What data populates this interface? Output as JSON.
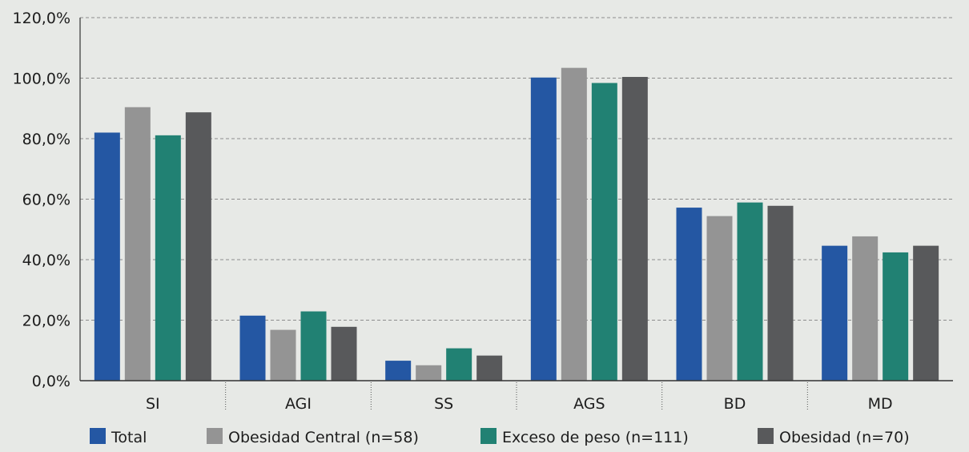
{
  "chart_data": {
    "type": "bar",
    "title": "",
    "xlabel": "",
    "ylabel": "",
    "ylim": [
      0,
      120
    ],
    "yticks": [
      0,
      20,
      40,
      60,
      80,
      100,
      120
    ],
    "ytick_labels": [
      "0,0%",
      "20,0%",
      "40,0%",
      "60,0%",
      "80,0%",
      "100,0%",
      "120,0%"
    ],
    "grid": true,
    "legend_position": "bottom",
    "categories": [
      "SI",
      "AGI",
      "SS",
      "AGS",
      "BD",
      "MD"
    ],
    "series": [
      {
        "name": "Total",
        "color": "#2457a3",
        "values": [
          82.0,
          21.5,
          6.6,
          100.2,
          57.2,
          44.6
        ]
      },
      {
        "name": "Obesidad Central (n=58)",
        "color": "#949494",
        "values": [
          90.4,
          16.8,
          5.1,
          103.4,
          54.4,
          47.7
        ]
      },
      {
        "name": "Exceso de peso (n=111)",
        "color": "#218173",
        "values": [
          81.1,
          22.9,
          10.7,
          98.4,
          58.9,
          42.4
        ]
      },
      {
        "name": "Obesidad (n=70)",
        "color": "#58595b",
        "values": [
          88.7,
          17.8,
          8.3,
          100.4,
          57.8,
          44.6
        ]
      }
    ]
  }
}
